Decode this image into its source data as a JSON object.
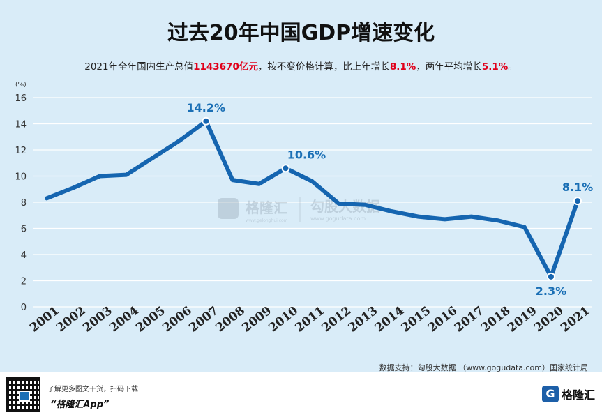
{
  "title": "过去20年中国GDP增速变化",
  "subtitle": {
    "part1": "2021年全年国内生产总值",
    "gdp": "1143670亿元",
    "part2": "，按不变价格计算，比上年增长",
    "growth": "8.1%",
    "part3": "，两年平均增长",
    "avg": "5.1%",
    "part4": "。"
  },
  "watermark": {
    "brand": "格隆汇",
    "brand_url": "www.gelonghui.com",
    "brand2": "勾股大数据",
    "brand2_url": "www.gogudata.com"
  },
  "source": "数据支持：勾股大数据 （www.gogudata.com）国家统计局",
  "footer": {
    "line1": "了解更多图文干货，扫码下载",
    "line2": "“格隆汇App”",
    "brand": "格隆汇",
    "brand_mark": "G"
  },
  "colors": {
    "line": "#1565b0",
    "label": "#1a6fb5",
    "highlight": "#e0001b",
    "background": "#d9ecf8"
  },
  "chart_data": {
    "type": "line",
    "title": "过去20年中国GDP增速变化",
    "unit_label": "(%)",
    "x": [
      "2001",
      "2002",
      "2003",
      "2004",
      "2005",
      "2006",
      "2007",
      "2008",
      "2009",
      "2010",
      "2011",
      "2012",
      "2013",
      "2014",
      "2015",
      "2016",
      "2017",
      "2018",
      "2019",
      "2020",
      "2021"
    ],
    "series": [
      {
        "values": [
          8.3,
          9.1,
          10.0,
          10.1,
          11.4,
          12.7,
          14.2,
          9.7,
          9.4,
          10.6,
          9.6,
          7.9,
          7.8,
          7.3,
          6.9,
          6.7,
          6.9,
          6.6,
          6.1,
          2.3,
          8.1
        ]
      }
    ],
    "annotations": [
      {
        "x": "2007",
        "text": "14.2%",
        "pos": "above"
      },
      {
        "x": "2010",
        "text": "10.6%",
        "pos": "above-right"
      },
      {
        "x": "2020",
        "text": "2.3%",
        "pos": "below"
      },
      {
        "x": "2021",
        "text": "8.1%",
        "pos": "above"
      }
    ],
    "ylim": [
      0,
      16
    ],
    "yticks": [
      0,
      2,
      4,
      6,
      8,
      10,
      12,
      14,
      16
    ],
    "grid": true
  }
}
